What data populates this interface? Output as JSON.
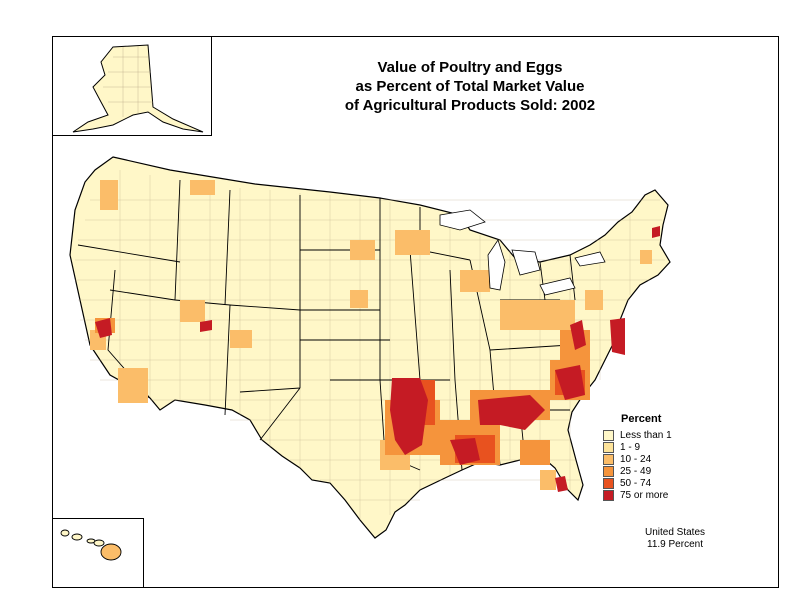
{
  "title": {
    "line1": "Value of Poultry and Eggs",
    "line2": "as Percent of Total Market Value",
    "line3": "of Agricultural Products Sold:  2002"
  },
  "legend": {
    "title": "Percent",
    "items": [
      {
        "label": "Less than 1",
        "color": "#fff7c8"
      },
      {
        "label": "1 - 9",
        "color": "#fde39a"
      },
      {
        "label": "10 - 24",
        "color": "#fbbd69"
      },
      {
        "label": "25 - 49",
        "color": "#f5943c"
      },
      {
        "label": "50 - 74",
        "color": "#e8521f"
      },
      {
        "label": "75 or more",
        "color": "#c51b24"
      }
    ]
  },
  "summary": {
    "line1": "United States",
    "line2": "11.9 Percent"
  },
  "colors": {
    "base": "#fff7c8",
    "border": "#000000",
    "county_line": "#b9a888"
  }
}
